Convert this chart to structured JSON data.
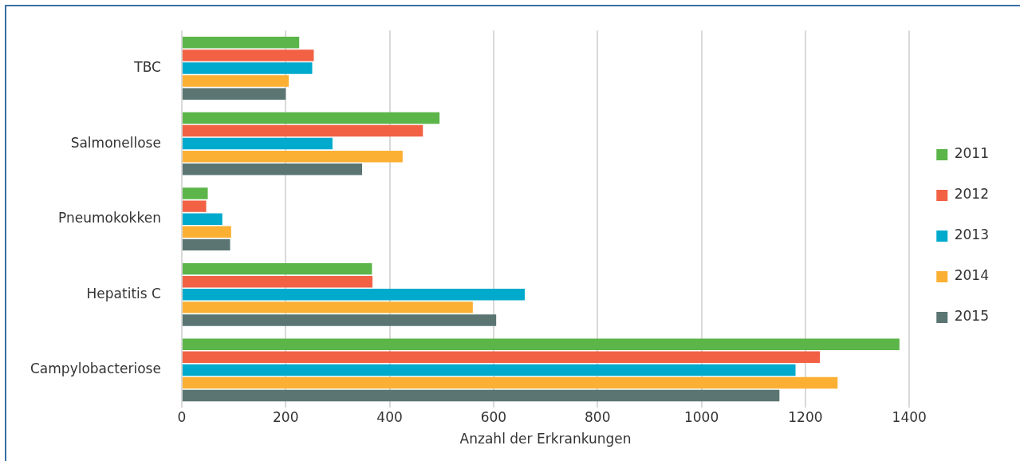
{
  "chart_data": {
    "type": "bar",
    "orientation": "horizontal",
    "xlabel": "Anzahl der Erkrankungen",
    "categories": [
      "TBC",
      "Salmonellose",
      "Pneumokokken",
      "Hepatitis C",
      "Campylobacteriose"
    ],
    "series": [
      {
        "name": "2011",
        "color": "#5bb548",
        "values": [
          226,
          496,
          50,
          366,
          1381
        ]
      },
      {
        "name": "2012",
        "color": "#f26144",
        "values": [
          254,
          464,
          47,
          367,
          1228
        ]
      },
      {
        "name": "2013",
        "color": "#00aacc",
        "values": [
          251,
          290,
          78,
          660,
          1181
        ]
      },
      {
        "name": "2014",
        "color": "#fbb034",
        "values": [
          206,
          425,
          95,
          560,
          1262
        ]
      },
      {
        "name": "2015",
        "color": "#5a7572",
        "values": [
          200,
          347,
          93,
          605,
          1150
        ]
      }
    ],
    "xlim": [
      0,
      1400
    ],
    "xticks": [
      0,
      200,
      400,
      600,
      800,
      1000,
      1200,
      1400
    ],
    "grid": "x",
    "legend": "right"
  }
}
